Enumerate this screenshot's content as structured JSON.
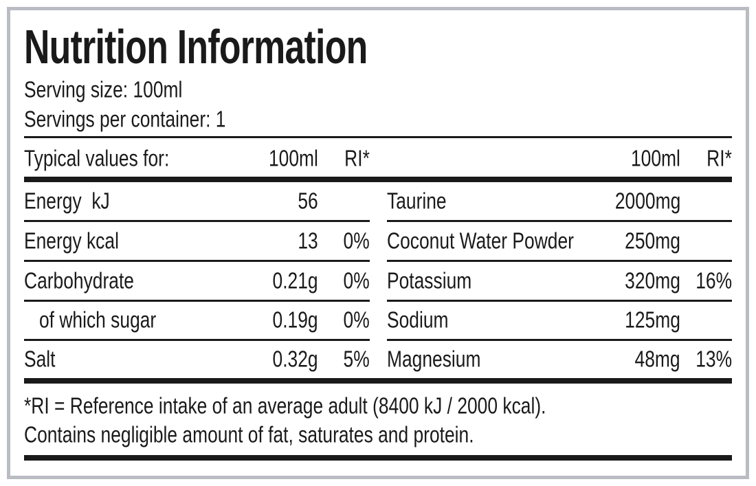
{
  "title": "Nutrition Information",
  "serving_size": "Serving size: 100ml",
  "servings_per_container": "Servings per container: 1",
  "header": {
    "label": "Typical values for:",
    "left_amount": "100ml",
    "left_ri": "RI*",
    "right_amount": "100ml",
    "right_ri": "RI*"
  },
  "left_rows": [
    {
      "label": "Energy  kJ",
      "amount": "56",
      "ri": ""
    },
    {
      "label": "Energy kcal",
      "amount": "13",
      "ri": "0%"
    },
    {
      "label": "Carbohydrate",
      "amount": "0.21g",
      "ri": "0%"
    },
    {
      "label": "   of which sugar",
      "amount": "0.19g",
      "ri": "0%"
    },
    {
      "label": "Salt",
      "amount": "0.32g",
      "ri": "5%"
    }
  ],
  "right_rows": [
    {
      "label": "Taurine",
      "amount": "2000mg",
      "ri": ""
    },
    {
      "label": "Coconut Water Powder",
      "amount": "250mg",
      "ri": ""
    },
    {
      "label": "Potassium",
      "amount": "320mg",
      "ri": "16%"
    },
    {
      "label": "Sodium",
      "amount": "125mg",
      "ri": ""
    },
    {
      "label": "Magnesium",
      "amount": "48mg",
      "ri": "13%"
    }
  ],
  "footnotes": [
    "*RI = Reference intake of an average adult (8400 kJ / 2000 kcal).",
    "Contains negligible amount of fat, saturates and protein."
  ]
}
